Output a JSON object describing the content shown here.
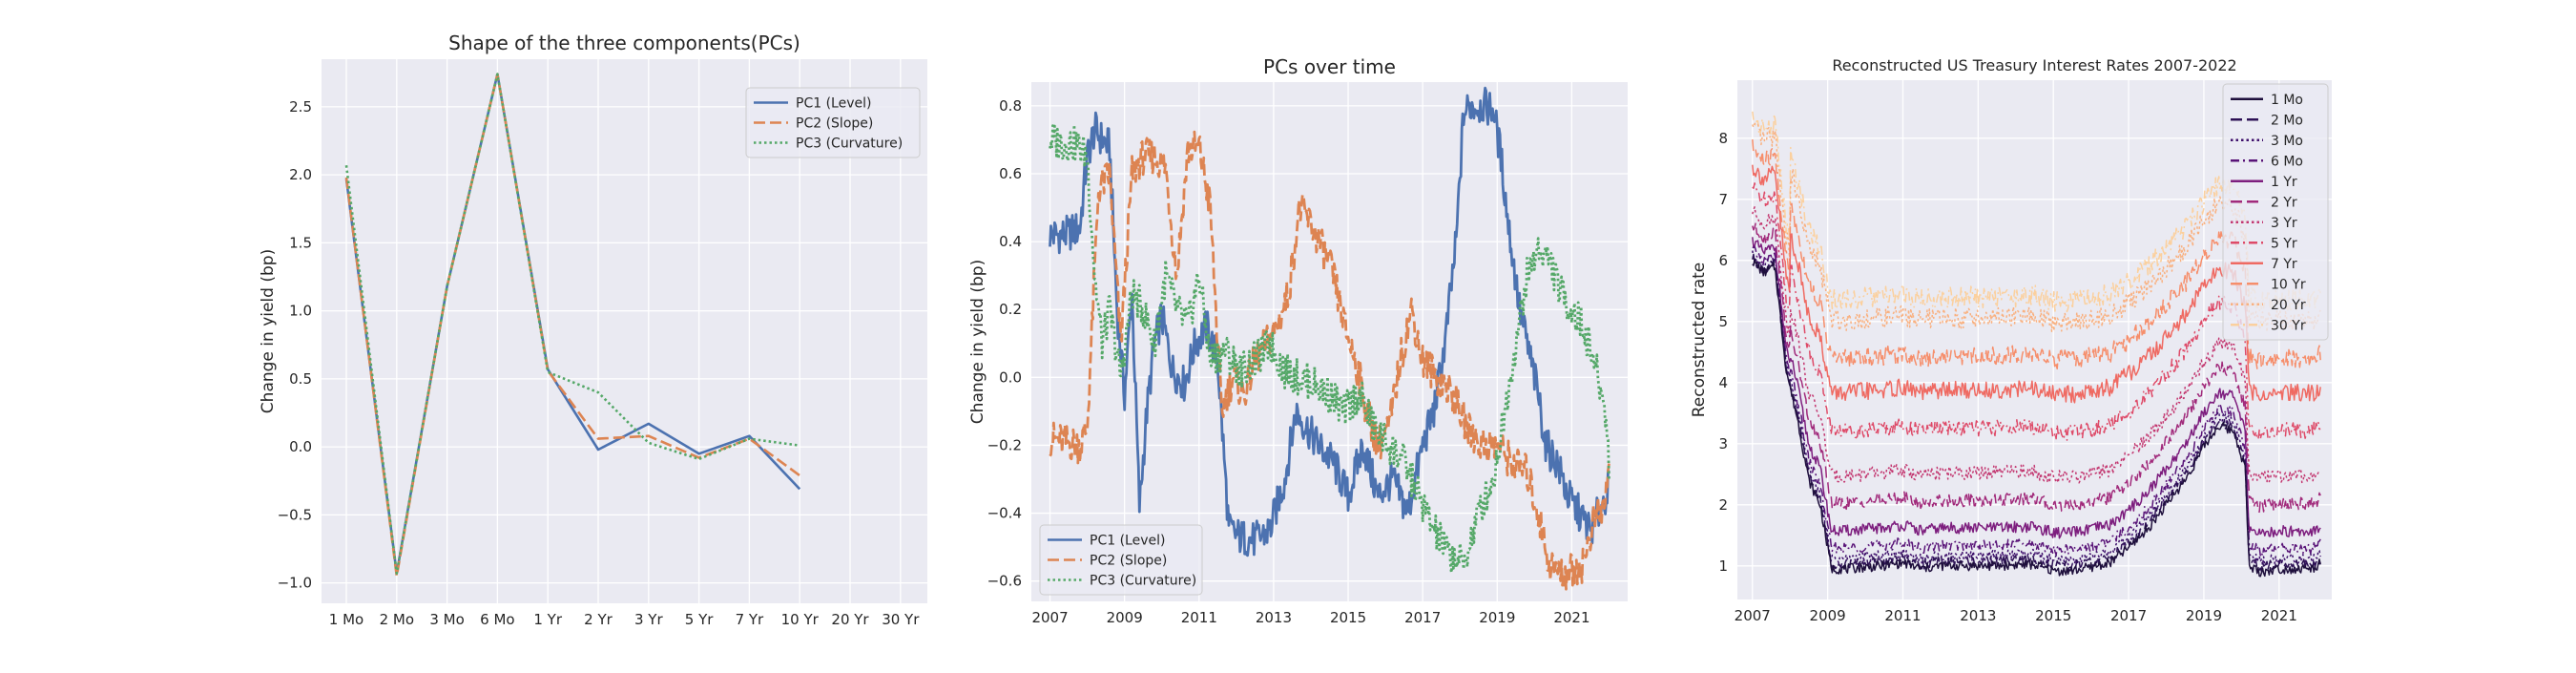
{
  "chart_data": [
    {
      "type": "line",
      "title": "Shape of the three components(PCs)",
      "xlabel": "",
      "ylabel": "Change in yield (bp)",
      "categories": [
        "1 Mo",
        "2 Mo",
        "3 Mo",
        "6 Mo",
        "1 Yr",
        "2 Yr",
        "3 Yr",
        "5 Yr",
        "7 Yr",
        "10 Yr",
        "20 Yr",
        "30 Yr"
      ],
      "ylim": [
        -1.15,
        2.85
      ],
      "yticks": [
        -1.0,
        -0.5,
        0.0,
        0.5,
        1.0,
        1.5,
        2.0,
        2.5
      ],
      "ytick_labels": [
        "−1.0",
        "−0.5",
        "0.0",
        "0.5",
        "1.0",
        "1.5",
        "2.0",
        "2.5"
      ],
      "grid": true,
      "legend_position": "top-right",
      "series": [
        {
          "name": "PC1 (Level)",
          "color": "#4c72b0",
          "style": "solid",
          "values": [
            1.97,
            -0.93,
            1.18,
            2.74,
            0.57,
            -0.02,
            0.17,
            -0.05,
            0.08,
            -0.31,
            null,
            null
          ]
        },
        {
          "name": "PC2 (Slope)",
          "color": "#dd8452",
          "style": "dashed",
          "values": [
            1.98,
            -0.95,
            1.18,
            2.74,
            0.56,
            0.06,
            0.08,
            -0.08,
            0.06,
            -0.21,
            null,
            null
          ]
        },
        {
          "name": "PC3 (Curvature)",
          "color": "#55a868",
          "style": "dotted",
          "values": [
            2.07,
            -0.93,
            1.18,
            2.74,
            0.55,
            0.4,
            0.03,
            -0.09,
            0.06,
            0.01,
            null,
            null
          ]
        }
      ]
    },
    {
      "type": "line",
      "title": "PCs over time",
      "xlabel": "",
      "ylabel": "Change in yield (bp)",
      "xlim": [
        2006.5,
        2022.5
      ],
      "xticks": [
        2007,
        2009,
        2011,
        2013,
        2015,
        2017,
        2019,
        2021
      ],
      "xtick_labels": [
        "2007",
        "2009",
        "2011",
        "2013",
        "2015",
        "2017",
        "2019",
        "2021"
      ],
      "ylim": [
        -0.66,
        0.87
      ],
      "yticks": [
        -0.6,
        -0.4,
        -0.2,
        0.0,
        0.2,
        0.4,
        0.6,
        0.8
      ],
      "ytick_labels": [
        "−0.6",
        "−0.4",
        "−0.2",
        "0.0",
        "0.2",
        "0.4",
        "0.6",
        "0.8"
      ],
      "grid": true,
      "legend_position": "bottom-left",
      "series": [
        {
          "name": "PC1 (Level)",
          "color": "#4c72b0",
          "style": "solid",
          "x": [
            2007.0,
            2007.4,
            2007.8,
            2008.0,
            2008.2,
            2008.4,
            2008.6,
            2008.8,
            2009.0,
            2009.2,
            2009.4,
            2009.6,
            2009.8,
            2010.0,
            2010.3,
            2010.6,
            2010.9,
            2011.2,
            2011.5,
            2011.8,
            2012.1,
            2012.5,
            2012.9,
            2013.3,
            2013.6,
            2013.9,
            2014.2,
            2014.6,
            2015.0,
            2015.4,
            2015.8,
            2016.2,
            2016.6,
            2017.0,
            2017.3,
            2017.6,
            2017.9,
            2018.1,
            2018.3,
            2018.6,
            2018.9,
            2019.1,
            2019.3,
            2019.6,
            2019.9,
            2020.1,
            2020.3,
            2020.6,
            2020.9,
            2021.2,
            2021.5,
            2021.8,
            2022.0
          ],
          "values": [
            0.42,
            0.42,
            0.44,
            0.65,
            0.73,
            0.7,
            0.68,
            0.2,
            -0.05,
            0.25,
            -0.38,
            -0.1,
            0.1,
            0.18,
            0.02,
            -0.02,
            0.1,
            0.15,
            0.05,
            -0.45,
            -0.47,
            -0.48,
            -0.45,
            -0.3,
            -0.1,
            -0.15,
            -0.2,
            -0.25,
            -0.35,
            -0.2,
            -0.35,
            -0.3,
            -0.4,
            -0.2,
            -0.1,
            0.1,
            0.4,
            0.78,
            0.8,
            0.8,
            0.79,
            0.65,
            0.45,
            0.2,
            0.05,
            -0.05,
            -0.2,
            -0.25,
            -0.35,
            -0.4,
            -0.45,
            -0.38,
            -0.32
          ]
        },
        {
          "name": "PC2 (Slope)",
          "color": "#dd8452",
          "style": "dashed",
          "x": [
            2007.0,
            2007.4,
            2007.8,
            2008.0,
            2008.3,
            2008.6,
            2008.9,
            2009.2,
            2009.5,
            2009.8,
            2010.1,
            2010.4,
            2010.7,
            2011.0,
            2011.3,
            2011.6,
            2011.9,
            2012.2,
            2012.5,
            2012.8,
            2013.1,
            2013.4,
            2013.7,
            2014.0,
            2014.3,
            2014.6,
            2014.9,
            2015.2,
            2015.5,
            2015.8,
            2016.1,
            2016.4,
            2016.7,
            2017.0,
            2017.4,
            2017.8,
            2018.2,
            2018.6,
            2019.0,
            2019.4,
            2019.8,
            2020.1,
            2020.4,
            2020.7,
            2021.0,
            2021.3,
            2021.6,
            2021.9,
            2022.0
          ],
          "values": [
            -0.18,
            -0.19,
            -0.2,
            -0.15,
            0.55,
            0.6,
            0.1,
            0.6,
            0.65,
            0.65,
            0.62,
            0.3,
            0.67,
            0.68,
            0.5,
            -0.1,
            0.0,
            -0.05,
            0.05,
            0.1,
            0.15,
            0.25,
            0.5,
            0.45,
            0.38,
            0.3,
            0.15,
            0.05,
            -0.1,
            -0.2,
            -0.15,
            0.05,
            0.2,
            0.05,
            0.0,
            -0.05,
            -0.15,
            -0.2,
            -0.2,
            -0.25,
            -0.28,
            -0.4,
            -0.55,
            -0.58,
            -0.57,
            -0.55,
            -0.42,
            -0.38,
            -0.22
          ]
        },
        {
          "name": "PC3 (Curvature)",
          "color": "#55a868",
          "style": "dotted",
          "x": [
            2007.0,
            2007.3,
            2007.7,
            2008.0,
            2008.2,
            2008.4,
            2008.6,
            2008.9,
            2009.2,
            2009.5,
            2009.8,
            2010.1,
            2010.4,
            2010.7,
            2011.0,
            2011.3,
            2011.7,
            2012.1,
            2012.5,
            2012.9,
            2013.3,
            2013.7,
            2014.1,
            2014.5,
            2014.9,
            2015.3,
            2015.7,
            2016.1,
            2016.5,
            2016.9,
            2017.3,
            2017.7,
            2018.1,
            2018.5,
            2018.9,
            2019.2,
            2019.5,
            2019.8,
            2020.1,
            2020.4,
            2020.7,
            2021.0,
            2021.3,
            2021.6,
            2021.9,
            2022.0
          ],
          "values": [
            0.7,
            0.69,
            0.69,
            0.65,
            0.3,
            0.1,
            0.2,
            0.0,
            0.25,
            0.2,
            0.1,
            0.3,
            0.2,
            0.15,
            0.3,
            0.05,
            0.08,
            0.02,
            0.05,
            0.1,
            0.02,
            0.0,
            -0.02,
            -0.05,
            -0.1,
            -0.05,
            -0.15,
            -0.2,
            -0.25,
            -0.35,
            -0.45,
            -0.52,
            -0.55,
            -0.4,
            -0.3,
            -0.1,
            0.1,
            0.3,
            0.38,
            0.35,
            0.25,
            0.2,
            0.15,
            0.05,
            -0.1,
            -0.25
          ]
        }
      ]
    },
    {
      "type": "line",
      "title": "Reconstructed US Treasury Interest Rates 2007-2022",
      "xlabel": "",
      "ylabel": "Reconstructed rate",
      "xlim": [
        2006.6,
        2022.4
      ],
      "xticks": [
        2007,
        2009,
        2011,
        2013,
        2015,
        2017,
        2019,
        2021
      ],
      "xtick_labels": [
        "2007",
        "2009",
        "2011",
        "2013",
        "2015",
        "2017",
        "2019",
        "2021"
      ],
      "ylim": [
        0.45,
        8.95
      ],
      "yticks": [
        1,
        2,
        3,
        4,
        5,
        6,
        7,
        8
      ],
      "ytick_labels": [
        "1",
        "2",
        "3",
        "4",
        "5",
        "6",
        "7",
        "8"
      ],
      "grid": true,
      "legend_position": "top-right",
      "x": [
        2007.0,
        2007.3,
        2007.6,
        2007.9,
        2008.2,
        2008.5,
        2008.8,
        2009.1,
        2009.5,
        2010.0,
        2010.5,
        2011.0,
        2011.5,
        2012.0,
        2012.5,
        2013.0,
        2013.5,
        2014.0,
        2014.5,
        2015.0,
        2015.5,
        2016.0,
        2016.5,
        2017.0,
        2017.5,
        2018.0,
        2018.5,
        2019.0,
        2019.4,
        2019.8,
        2020.1,
        2020.2,
        2020.5,
        2021.0,
        2021.5,
        2021.9,
        2022.1
      ],
      "series": [
        {
          "name": "1 Mo",
          "color": "#1e0f3c",
          "style": "solid",
          "base": 0.0
        },
        {
          "name": "2 Mo",
          "color": "#2d1155",
          "style": "dashed",
          "base": 0.07
        },
        {
          "name": "3 Mo",
          "color": "#3e106b",
          "style": "dotted",
          "base": 0.15
        },
        {
          "name": "6 Mo",
          "color": "#591478",
          "style": "dashdot",
          "base": 0.3
        },
        {
          "name": "1 Yr",
          "color": "#7d1e7e",
          "style": "solid",
          "base": 0.55
        },
        {
          "name": "2 Yr",
          "color": "#a12a7b",
          "style": "dashed",
          "base": 0.95
        },
        {
          "name": "3 Yr",
          "color": "#c33770",
          "style": "dotted",
          "base": 1.35
        },
        {
          "name": "5 Yr",
          "color": "#de4a68",
          "style": "dashdot",
          "base": 2.0
        },
        {
          "name": "7 Yr",
          "color": "#ef6a62",
          "style": "solid",
          "base": 2.55
        },
        {
          "name": "10 Yr",
          "color": "#f68e6b",
          "style": "dashed",
          "base": 3.05
        },
        {
          "name": "20 Yr",
          "color": "#f9b07f",
          "style": "dotted",
          "base": 3.6
        },
        {
          "name": "30 Yr",
          "color": "#fbd09e",
          "style": "dashdot",
          "base": 3.9
        }
      ],
      "level_1mo": [
        6.0,
        5.8,
        5.9,
        4.2,
        3.4,
        2.4,
        2.0,
        0.95,
        0.95,
        0.98,
        1.0,
        1.05,
        0.95,
        1.0,
        1.0,
        1.0,
        1.0,
        1.02,
        1.02,
        0.92,
        0.92,
        0.98,
        1.05,
        1.3,
        1.6,
        2.0,
        2.4,
        2.95,
        3.3,
        3.2,
        2.6,
        1.0,
        0.9,
        0.95,
        0.95,
        0.95,
        1.05
      ]
    }
  ]
}
